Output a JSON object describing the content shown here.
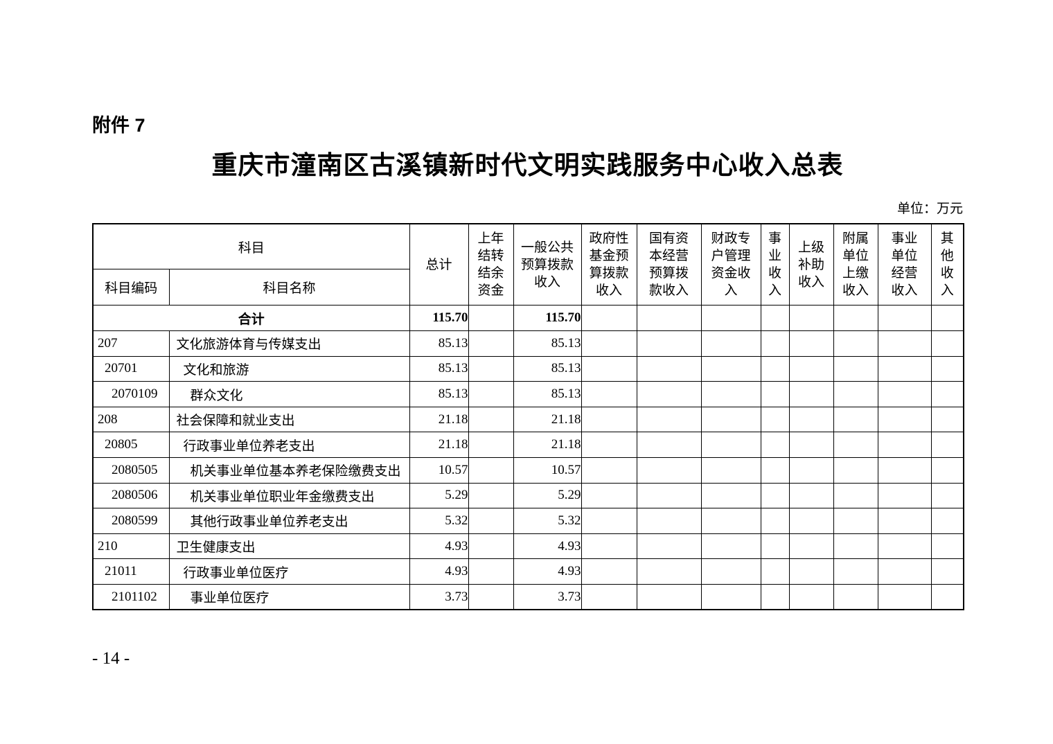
{
  "page": {
    "attachment_label": "附件 7",
    "title": "重庆市潼南区古溪镇新时代文明实践服务中心收入总表",
    "unit_label": "单位：万元",
    "page_number": "- 14 -"
  },
  "table": {
    "subject_header": "科目",
    "code_header": "科目编码",
    "name_header": "科目名称",
    "columns": [
      {
        "id": "total",
        "label": "总计"
      },
      {
        "id": "carryover-funds",
        "label": "上年\n结转\n结余\n资金"
      },
      {
        "id": "general-public-budget-income",
        "label": "一般公共\n预算拨款\n收入"
      },
      {
        "id": "gov-fund-budget-income",
        "label": "政府性\n基金预\n算拨款\n收入"
      },
      {
        "id": "state-capital-budget-income",
        "label": "国有资\n本经营\n预算拨\n款收入"
      },
      {
        "id": "fiscal-account-income",
        "label": "财政专\n户管理\n资金收\n入"
      },
      {
        "id": "business-income",
        "label": "事\n业\n收\n入"
      },
      {
        "id": "superior-subsidy-income",
        "label": "上级\n补助\n收入"
      },
      {
        "id": "affiliated-unit-remitted-income",
        "label": "附属\n单位\n上缴\n收入"
      },
      {
        "id": "business-unit-operating-income",
        "label": "事业\n单位\n经营\n收入"
      },
      {
        "id": "other-income",
        "label": "其\n他\n收\n入"
      }
    ],
    "rows": [
      {
        "merged": true,
        "bold": true,
        "code": "",
        "name": "合计",
        "level": 0,
        "values": [
          "115.70",
          "",
          "115.70",
          "",
          "",
          "",
          "",
          "",
          "",
          "",
          ""
        ]
      },
      {
        "code": "207",
        "name": "文化旅游体育与传媒支出",
        "level": 0,
        "values": [
          "85.13",
          "",
          "85.13",
          "",
          "",
          "",
          "",
          "",
          "",
          "",
          ""
        ]
      },
      {
        "code": "20701",
        "name": "文化和旅游",
        "level": 1,
        "values": [
          "85.13",
          "",
          "85.13",
          "",
          "",
          "",
          "",
          "",
          "",
          "",
          ""
        ]
      },
      {
        "code": "2070109",
        "name": "群众文化",
        "level": 2,
        "values": [
          "85.13",
          "",
          "85.13",
          "",
          "",
          "",
          "",
          "",
          "",
          "",
          ""
        ]
      },
      {
        "code": "208",
        "name": "社会保障和就业支出",
        "level": 0,
        "values": [
          "21.18",
          "",
          "21.18",
          "",
          "",
          "",
          "",
          "",
          "",
          "",
          ""
        ]
      },
      {
        "code": "20805",
        "name": "行政事业单位养老支出",
        "level": 1,
        "values": [
          "21.18",
          "",
          "21.18",
          "",
          "",
          "",
          "",
          "",
          "",
          "",
          ""
        ]
      },
      {
        "code": "2080505",
        "name": "机关事业单位基本养老保险缴费支出",
        "level": 2,
        "values": [
          "10.57",
          "",
          "10.57",
          "",
          "",
          "",
          "",
          "",
          "",
          "",
          ""
        ]
      },
      {
        "code": "2080506",
        "name": "机关事业单位职业年金缴费支出",
        "level": 2,
        "values": [
          "5.29",
          "",
          "5.29",
          "",
          "",
          "",
          "",
          "",
          "",
          "",
          ""
        ]
      },
      {
        "code": "2080599",
        "name": "其他行政事业单位养老支出",
        "level": 2,
        "values": [
          "5.32",
          "",
          "5.32",
          "",
          "",
          "",
          "",
          "",
          "",
          "",
          ""
        ]
      },
      {
        "code": "210",
        "name": "卫生健康支出",
        "level": 0,
        "values": [
          "4.93",
          "",
          "4.93",
          "",
          "",
          "",
          "",
          "",
          "",
          "",
          ""
        ]
      },
      {
        "code": "21011",
        "name": "行政事业单位医疗",
        "level": 1,
        "values": [
          "4.93",
          "",
          "4.93",
          "",
          "",
          "",
          "",
          "",
          "",
          "",
          ""
        ]
      },
      {
        "code": "2101102",
        "name": "事业单位医疗",
        "level": 2,
        "values": [
          "3.73",
          "",
          "3.73",
          "",
          "",
          "",
          "",
          "",
          "",
          "",
          ""
        ]
      }
    ]
  }
}
